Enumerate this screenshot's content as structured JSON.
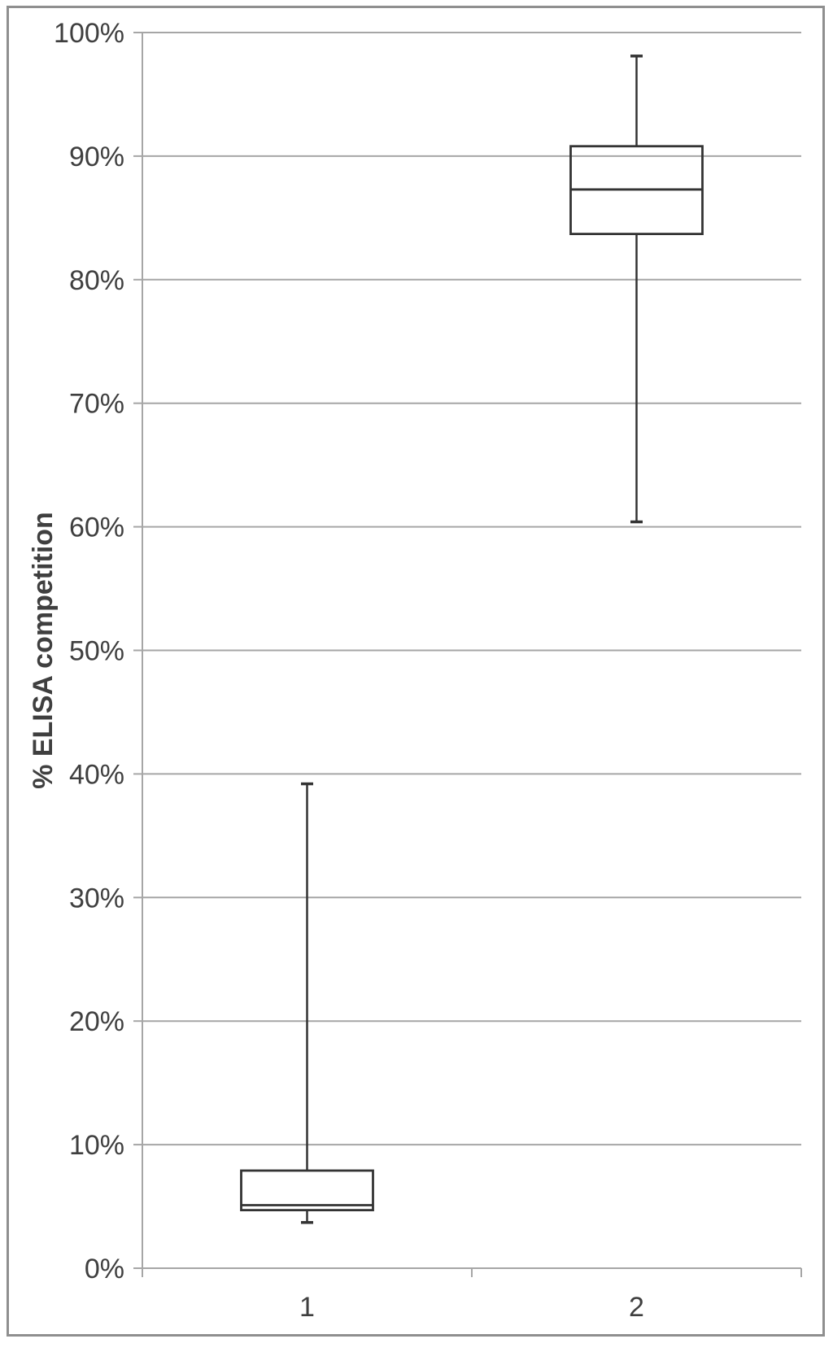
{
  "chart_data": {
    "type": "boxplot",
    "title": "",
    "xlabel": "",
    "ylabel": "% ELISA competition",
    "categories": [
      "1",
      "2"
    ],
    "ylim": [
      0,
      100
    ],
    "ytick_step": 10,
    "ytick_labels": [
      "0%",
      "10%",
      "20%",
      "30%",
      "40%",
      "50%",
      "60%",
      "70%",
      "80%",
      "90%",
      "100%"
    ],
    "grid": true,
    "legend": false,
    "series": [
      {
        "category": "1",
        "whisker_low": 3.7,
        "q1": 4.7,
        "median": 5.1,
        "q3": 7.9,
        "whisker_high": 39.2
      },
      {
        "category": "2",
        "whisker_low": 60.4,
        "q1": 83.7,
        "median": 87.3,
        "q3": 90.8,
        "whisker_high": 98.1
      }
    ],
    "colors": {
      "box_line": "#333333",
      "grid_line": "#a6a6a6",
      "axis_line": "#a6a6a6",
      "text": "#3f3f3f",
      "frame_border": "#8f8f8f",
      "background": "#ffffff"
    }
  }
}
